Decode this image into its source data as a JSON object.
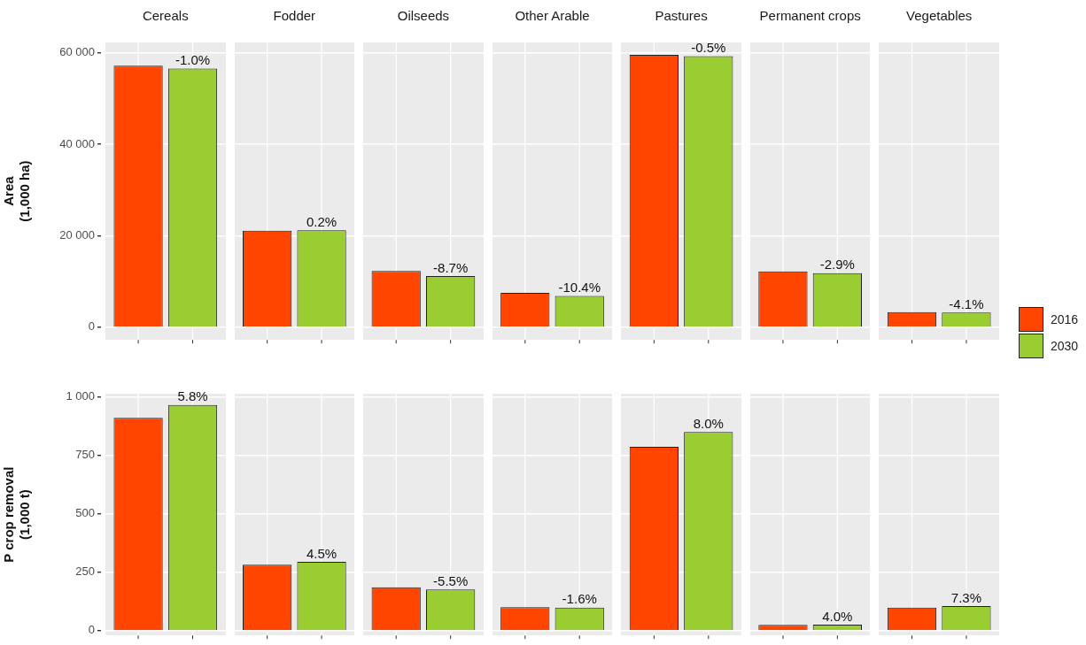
{
  "chart_data": [
    {
      "type": "bar",
      "ylabel": "Area\n(1,000 ha)",
      "categories": [
        "Cereals",
        "Fodder",
        "Oilseeds",
        "Other Arable",
        "Pastures",
        "Permanent crops",
        "Vegetables"
      ],
      "ylim": [
        -2800,
        62300
      ],
      "yticks": [
        0,
        {
          "value": 20000,
          "label": "20 000"
        },
        {
          "value": 40000,
          "label": "40 000"
        },
        {
          "value": 60000,
          "label": "60 000"
        }
      ],
      "grid": true,
      "legend": "right",
      "annotations": [
        {
          "text": "-1.0%",
          "x": "Cereals",
          "y": 56600
        },
        {
          "text": "0.2%",
          "x": "Fodder",
          "y": 21200
        },
        {
          "text": "-8.7%",
          "x": "Oilseeds",
          "y": 11200
        },
        {
          "text": "-10.4%",
          "x": "Other Arable",
          "y": 6800
        },
        {
          "text": "-0.5%",
          "x": "Pastures",
          "y": 59300
        },
        {
          "text": "-2.9%",
          "x": "Permanent crops",
          "y": 11800
        },
        {
          "text": "-4.1%",
          "x": "Vegetables",
          "y": 3200
        }
      ],
      "series": [
        {
          "name": "2016",
          "color": "#ff4500",
          "values": [
            57200,
            21100,
            12300,
            7500,
            59600,
            12200,
            3300
          ]
        },
        {
          "name": "2030",
          "color": "#9acd32",
          "values": [
            56600,
            21200,
            11200,
            6800,
            59300,
            11800,
            3200
          ]
        }
      ]
    },
    {
      "type": "bar",
      "ylabel": "P crop removal\n(1,000 t)",
      "categories": [
        "Cereals",
        "Fodder",
        "Oilseeds",
        "Other Arable",
        "Pastures",
        "Permanent crops",
        "Vegetables"
      ],
      "tick_labels": "y",
      "ylim": [
        -20,
        1013
      ],
      "yticks": [
        0,
        250,
        500,
        750,
        {
          "value": 1000,
          "label": "1 000"
        }
      ],
      "grid": true,
      "annotations": [
        {
          "text": "5.8%",
          "x": "Cereals",
          "y": 965
        },
        {
          "text": "4.5%",
          "x": "Fodder",
          "y": 295
        },
        {
          "text": "-5.5%",
          "x": "Oilseeds",
          "y": 176
        },
        {
          "text": "-1.6%",
          "x": "Other Arable",
          "y": 99
        },
        {
          "text": "8.0%",
          "x": "Pastures",
          "y": 849
        },
        {
          "text": "4.0%",
          "x": "Permanent crops",
          "y": 26
        },
        {
          "text": "7.3%",
          "x": "Vegetables",
          "y": 106
        }
      ],
      "series": [
        {
          "color": "#ff4500",
          "values": [
            910,
            282,
            186,
            101,
            786,
            25,
            99
          ]
        },
        {
          "color": "#9acd32",
          "values": [
            965,
            295,
            176,
            99,
            849,
            26,
            106
          ]
        }
      ]
    }
  ]
}
